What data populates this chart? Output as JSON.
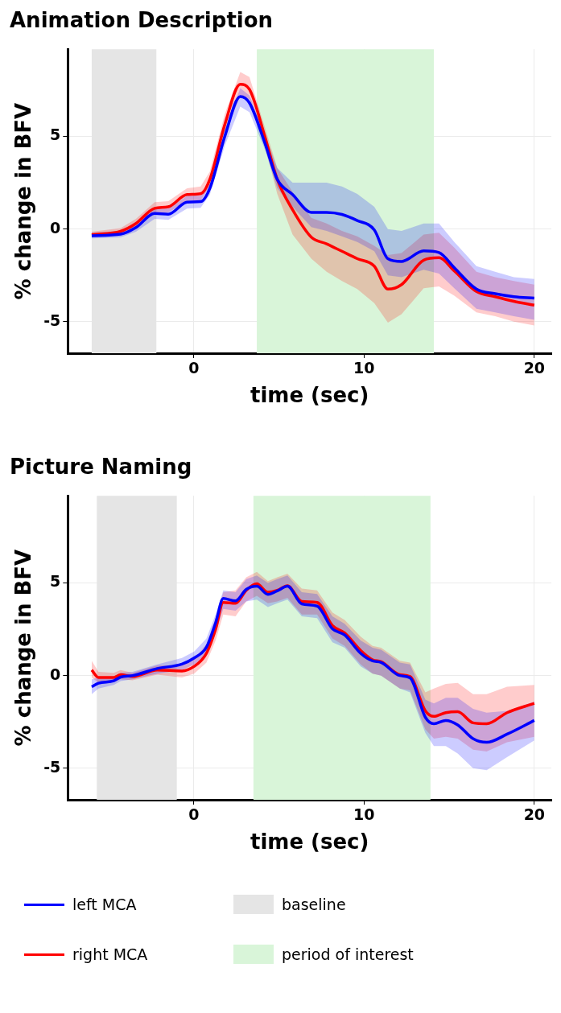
{
  "chart_data": [
    {
      "type": "line",
      "title": "Animation Description",
      "xlabel": "time (sec)",
      "ylabel": "% change in BFV",
      "x": [
        -6,
        -4.3,
        -3.4,
        -2.3,
        -1.5,
        -0.4,
        0.4,
        0.94,
        1.82,
        2.73,
        3.27,
        4.17,
        4.9,
        5.8,
        6.9,
        7.8,
        8.7,
        9.6,
        10.6,
        11.4,
        12.2,
        13.5,
        14.4,
        15.3,
        16.6,
        17.7,
        18.8,
        20
      ],
      "series": [
        {
          "color": "#0000ff",
          "values": [
            -0.36,
            -0.28,
            0.08,
            0.84,
            0.8,
            1.45,
            1.48,
            2.19,
            5.0,
            7.15,
            6.8,
            4.65,
            2.68,
            1.86,
            0.9,
            0.9,
            0.79,
            0.46,
            -0.05,
            -1.6,
            -1.75,
            -1.18,
            -1.27,
            -2.09,
            -3.24,
            -3.49,
            -3.65,
            -3.73
          ],
          "lower": [
            -0.5,
            -0.45,
            -0.15,
            0.55,
            0.5,
            1.1,
            1.15,
            1.85,
            4.5,
            6.6,
            6.3,
            4.3,
            2.2,
            1.2,
            0.1,
            -0.1,
            -0.4,
            -0.7,
            -1.2,
            -2.5,
            -2.6,
            -2.2,
            -2.4,
            -3.2,
            -4.3,
            -4.5,
            -4.7,
            -4.9
          ],
          "upper": [
            -0.2,
            -0.1,
            0.3,
            1.1,
            1.1,
            1.8,
            1.8,
            2.5,
            5.4,
            7.6,
            7.2,
            5.1,
            3.3,
            2.5,
            2.5,
            2.5,
            2.3,
            1.9,
            1.2,
            0.0,
            -0.1,
            0.3,
            0.3,
            -0.7,
            -2.0,
            -2.3,
            -2.6,
            -2.7
          ]
        },
        {
          "color": "#ff0000",
          "values": [
            -0.31,
            -0.12,
            0.3,
            1.12,
            1.2,
            1.86,
            1.91,
            2.68,
            5.64,
            7.81,
            7.53,
            5.0,
            2.68,
            1.04,
            -0.44,
            -0.8,
            -1.2,
            -1.6,
            -2.0,
            -3.24,
            -3.0,
            -1.68,
            -1.55,
            -2.26,
            -3.37,
            -3.65,
            -3.9,
            -4.11
          ],
          "lower": [
            -0.45,
            -0.3,
            0.05,
            0.85,
            0.9,
            1.5,
            1.55,
            2.3,
            5.1,
            7.2,
            7.0,
            4.5,
            1.9,
            -0.3,
            -1.6,
            -2.3,
            -2.8,
            -3.24,
            -4.0,
            -5.05,
            -4.6,
            -3.2,
            -3.1,
            -3.6,
            -4.5,
            -4.7,
            -5.0,
            -5.2
          ],
          "upper": [
            -0.15,
            0.05,
            0.55,
            1.45,
            1.5,
            2.2,
            2.3,
            3.1,
            6.2,
            8.47,
            8.2,
            5.5,
            3.3,
            2.0,
            0.6,
            0.3,
            -0.1,
            -0.4,
            -0.9,
            -1.4,
            -1.3,
            -0.3,
            -0.2,
            -1.0,
            -2.3,
            -2.6,
            -2.8,
            -3.0
          ]
        }
      ],
      "bands": [
        {
          "axis": "x",
          "from": -6.0,
          "to": -2.2,
          "color": "#e5e5e5"
        },
        {
          "axis": "x",
          "from": 3.7,
          "to": 14.1,
          "color": "#d9f5d9"
        }
      ],
      "xlim": [
        -7.4,
        21
      ],
      "xticks": [
        0,
        10,
        20
      ],
      "ylim": [
        -6.7,
        9.7
      ],
      "yticks": [
        -5,
        0,
        5
      ],
      "grid": true,
      "legend": false
    },
    {
      "type": "line",
      "title": "Picture Naming",
      "xlabel": "time (sec)",
      "ylabel": "% change in BFV",
      "x": [
        -6,
        -5.6,
        -4.7,
        -4.3,
        -3.6,
        -2.15,
        -0.7,
        0.02,
        0.74,
        1.28,
        1.73,
        2.45,
        3.08,
        3.7,
        4.35,
        4.9,
        5.5,
        6.34,
        7.24,
        8.14,
        8.86,
        9.8,
        10.5,
        11.0,
        12.1,
        12.7,
        13.6,
        14.1,
        14.8,
        15.5,
        16.4,
        17.2,
        18.4,
        20
      ],
      "series": [
        {
          "name": "left MCA",
          "color": "#0000ff",
          "values": [
            -0.6,
            -0.41,
            -0.28,
            -0.08,
            0,
            0.38,
            0.62,
            0.95,
            1.53,
            2.85,
            4.16,
            4.03,
            4.65,
            4.82,
            4.38,
            4.57,
            4.82,
            3.87,
            3.75,
            2.52,
            2.19,
            1.2,
            0.79,
            0.71,
            0,
            -0.12,
            -2.25,
            -2.6,
            -2.42,
            -2.66,
            -3.4,
            -3.6,
            -3.16,
            -2.42
          ],
          "lower": [
            -1.0,
            -0.7,
            -0.5,
            -0.3,
            -0.2,
            0.1,
            0.3,
            0.6,
            1.1,
            2.3,
            3.6,
            3.5,
            4.0,
            4.1,
            3.7,
            3.9,
            4.1,
            3.2,
            3.1,
            1.8,
            1.5,
            0.5,
            0.1,
            0.0,
            -0.7,
            -0.9,
            -3.1,
            -3.8,
            -3.8,
            -4.2,
            -5.0,
            -5.1,
            -4.4,
            -3.5
          ],
          "upper": [
            -0.2,
            -0.1,
            -0.05,
            0.15,
            0.2,
            0.6,
            0.95,
            1.3,
            2.0,
            3.3,
            4.6,
            4.5,
            5.2,
            5.4,
            5.0,
            5.2,
            5.4,
            4.5,
            4.4,
            3.2,
            2.8,
            1.9,
            1.5,
            1.4,
            0.7,
            0.6,
            -1.3,
            -1.5,
            -1.2,
            -1.2,
            -1.8,
            -2.0,
            -1.9,
            -1.4
          ]
        },
        {
          "name": "right MCA",
          "color": "#ff0000",
          "values": [
            0.3,
            -0.1,
            -0.1,
            0.05,
            -0.05,
            0.3,
            0.25,
            0.5,
            1.2,
            2.5,
            3.95,
            3.9,
            4.6,
            4.95,
            4.5,
            4.6,
            4.85,
            4.0,
            3.95,
            2.7,
            2.3,
            1.35,
            0.85,
            0.75,
            0.05,
            -0.05,
            -1.9,
            -2.2,
            -2.0,
            -1.95,
            -2.55,
            -2.6,
            -2.0,
            -1.5
          ],
          "lower": [
            -0.1,
            -0.4,
            -0.35,
            -0.2,
            -0.25,
            0.05,
            -0.1,
            0.1,
            0.7,
            1.9,
            3.3,
            3.2,
            4.0,
            4.3,
            3.9,
            4.0,
            4.2,
            3.3,
            3.3,
            2.0,
            1.6,
            0.6,
            0.1,
            0.0,
            -0.7,
            -0.8,
            -2.9,
            -3.4,
            -3.3,
            -3.4,
            -4.0,
            -4.1,
            -3.6,
            -3.3
          ],
          "upper": [
            0.8,
            0.2,
            0.15,
            0.3,
            0.15,
            0.55,
            0.55,
            0.9,
            1.7,
            3.1,
            4.5,
            4.6,
            5.3,
            5.6,
            5.1,
            5.3,
            5.5,
            4.7,
            4.6,
            3.4,
            3.0,
            2.1,
            1.6,
            1.5,
            0.8,
            0.7,
            -0.9,
            -0.7,
            -0.45,
            -0.4,
            -1.0,
            -1.0,
            -0.6,
            -0.5
          ]
        }
      ],
      "bands": [
        {
          "axis": "x",
          "from": -5.7,
          "to": -1.0,
          "color": "#e5e5e5",
          "label": "baseline"
        },
        {
          "axis": "x",
          "from": 3.5,
          "to": 13.9,
          "color": "#d9f5d9",
          "label": "period of interest"
        }
      ],
      "xlim": [
        -7.4,
        21
      ],
      "xticks": [
        0,
        10,
        20
      ],
      "ylim": [
        -6.7,
        9.7
      ],
      "yticks": [
        -5,
        0,
        5
      ],
      "grid": true,
      "legend": "bottom"
    }
  ]
}
